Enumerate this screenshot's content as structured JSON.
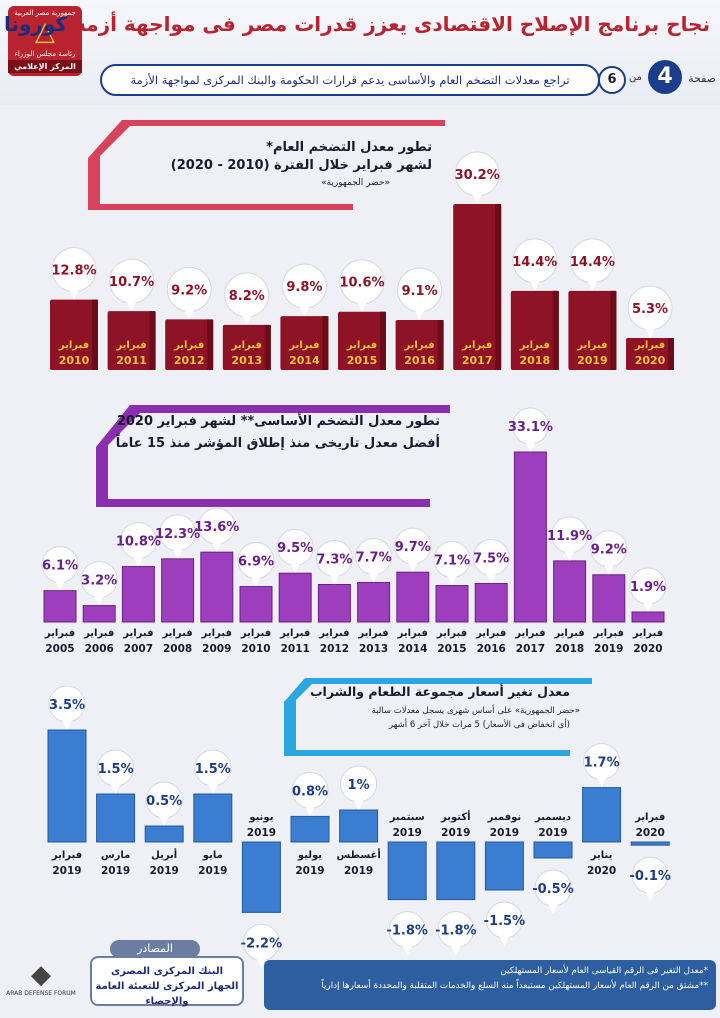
{
  "header": {
    "logo_lines": [
      "جمهورية مصر العربية",
      "رئاسة مجلس الوزراء",
      "المركز الإعلامي"
    ],
    "title_part1": "نجاح برنامج الإصلاح الاقتصادى يعزز قدرات مصر فى مواجهة أزمة ",
    "title_part2": "كورونا",
    "subtitle": "تراجع معدلات التضخم العام والأساسى يدعم قرارات الحكومة والبنك المركزى لمواجهة الأزمة",
    "page_label": "صفحة",
    "page_number": "4",
    "page_of": "من",
    "page_total": "6"
  },
  "colors": {
    "chart1_bar": "#8e1326",
    "chart1_bracket": "#d6435a",
    "chart2_bar": "#9d3fbd",
    "chart2_bracket": "#8a2fb0",
    "chart3_bar": "#3b7dd0",
    "chart3_bracket": "#2ba7df",
    "accent_dark": "#1c2c7a"
  },
  "chart_data": [
    {
      "type": "bar",
      "title": "تطور معدل التضخم العام*",
      "subtitle": "لشهر فبراير خلال الفترة (2010 - 2020)",
      "note": "«حضر الجمهورية»",
      "bar_label": "فبراير",
      "categories": [
        "2010",
        "2011",
        "2012",
        "2013",
        "2014",
        "2015",
        "2016",
        "2017",
        "2018",
        "2019",
        "2020"
      ],
      "values": [
        12.8,
        10.7,
        9.2,
        8.2,
        9.8,
        10.6,
        9.1,
        30.2,
        14.4,
        14.4,
        5.3
      ],
      "labels": [
        "12.8",
        "10.7",
        "9.2",
        "8.2",
        "9.8",
        "10.6",
        "9.1",
        "30.2",
        "14.4",
        "14.4",
        "5.3"
      ],
      "unit": "%"
    },
    {
      "type": "bar",
      "title": "تطور معدل التضخم الأساسى** لشهر فبراير 2020",
      "subtitle": "أفضل معدل تاريخى منذ إطلاق المؤشر منذ 15 عاماً",
      "bar_label": "فبراير",
      "categories": [
        "2005",
        "2006",
        "2007",
        "2008",
        "2009",
        "2010",
        "2011",
        "2012",
        "2013",
        "2014",
        "2015",
        "2016",
        "2017",
        "2018",
        "2019",
        "2020"
      ],
      "values": [
        6.1,
        3.2,
        10.8,
        12.3,
        13.6,
        6.9,
        9.5,
        7.3,
        7.7,
        9.7,
        7.1,
        7.5,
        33.1,
        11.9,
        9.2,
        1.9
      ],
      "labels": [
        "6.1",
        "3.2",
        "10.8",
        "12.3",
        "13.6",
        "6.9",
        "9.5",
        "7.3",
        "7.7",
        "9.7",
        "7.1",
        "7.5",
        "33.1",
        "11.9",
        "9.2",
        "1.9"
      ],
      "unit": "%"
    },
    {
      "type": "bar",
      "title": "معدل تغير أسعار مجموعة الطعام والشراب",
      "subtitle": "«حضر الجمهورية» على أساس شهرى يسجل معدلات سالبة",
      "subtitle2": "(أى انخفاض فى الأسعار) 5 مرات خلال آخر 6 أشهر",
      "categories": [
        "فبراير",
        "مارس",
        "أبريل",
        "مايو",
        "يونيو",
        "يوليو",
        "أغسطس",
        "سبتمبر",
        "أكتوبر",
        "نوفمبر",
        "ديسمبر",
        "يناير",
        "فبراير"
      ],
      "years": [
        "2019",
        "2019",
        "2019",
        "2019",
        "2019",
        "2019",
        "2019",
        "2019",
        "2019",
        "2019",
        "2019",
        "2020",
        "2020"
      ],
      "values": [
        3.5,
        1.5,
        0.5,
        1.5,
        -2.2,
        0.8,
        1,
        -1.8,
        -1.8,
        -1.5,
        -0.5,
        1.7,
        -0.1
      ],
      "labels": [
        "3.5",
        "1.5",
        "0.5",
        "1.5",
        "-2.2",
        "0.8",
        "1",
        "-1.8",
        "-1.8",
        "-1.5",
        "-0.5",
        "1.7",
        "-0.1"
      ],
      "unit": "%"
    }
  ],
  "sources": {
    "heading": "المصادر",
    "items": [
      "البنك المركزى المصرى",
      "الجهاز المركزى للتعبئة العامة والإحصاء"
    ]
  },
  "notes": {
    "lines": [
      "*معدل التغير فى الرقم القياسى العام لأسعار المستهلكين",
      "**مشتق من الرقم العام لأسعار المستهلكين مستبعداً منه السلع والخدمات المتقلبة والمحددة أسعارها إدارياً"
    ]
  },
  "watermark": {
    "text": "ARAB DEFENSE FORUM"
  }
}
